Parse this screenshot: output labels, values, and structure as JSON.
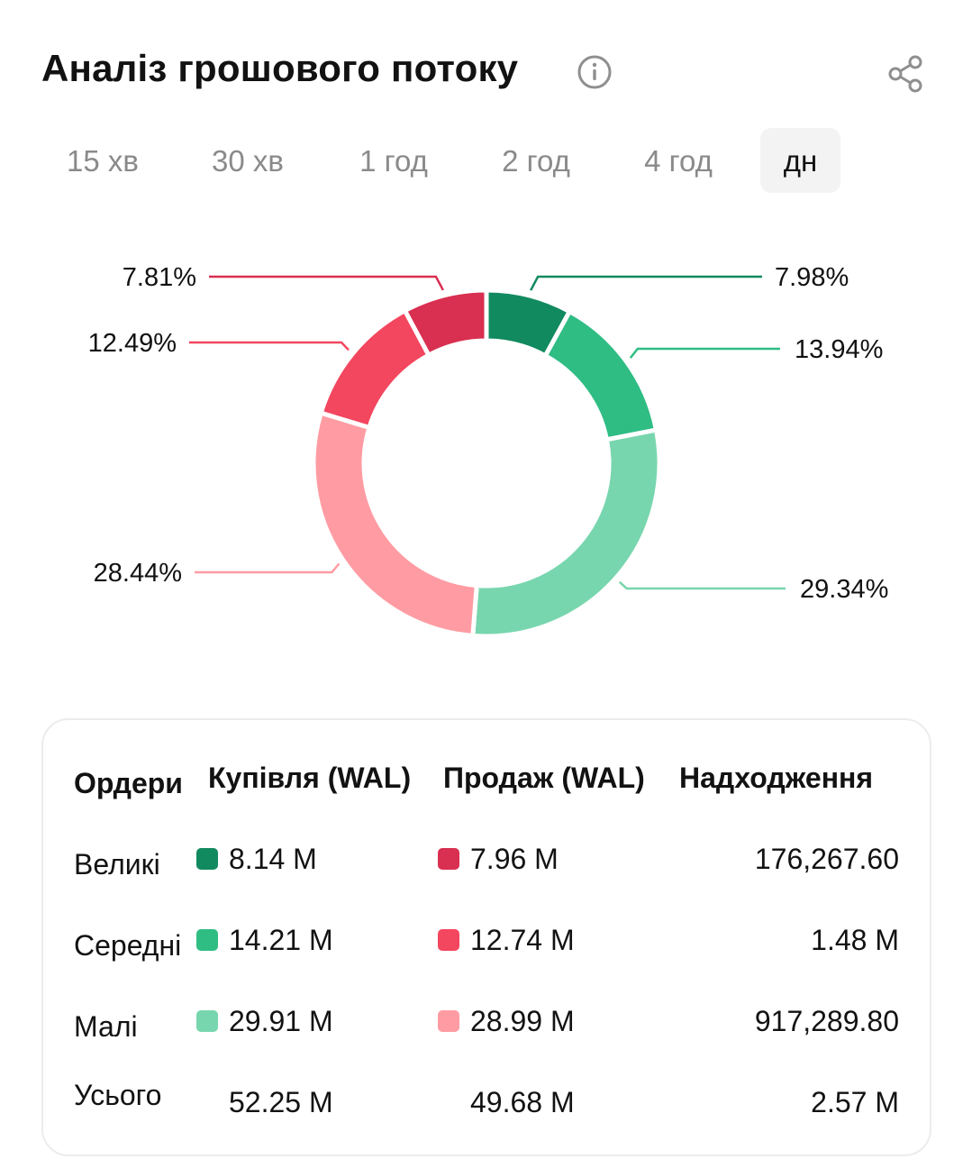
{
  "header": {
    "title": "Аналіз грошового потоку",
    "info_icon": "info-circle-icon",
    "share_icon": "share-icon"
  },
  "tabs": [
    {
      "label": "15 хв",
      "active": false
    },
    {
      "label": "30 хв",
      "active": false
    },
    {
      "label": "1 год",
      "active": false
    },
    {
      "label": "2 год",
      "active": false
    },
    {
      "label": "4 год",
      "active": false
    },
    {
      "label": "дн",
      "active": true
    }
  ],
  "colors": {
    "buy_large": "#128a5f",
    "buy_medium": "#2fbd84",
    "buy_small": "#78d6ae",
    "sell_large": "#d92f50",
    "sell_medium": "#f3465f",
    "sell_small": "#ff9ca3"
  },
  "chart_data": {
    "type": "pie",
    "style": "donut",
    "slices": [
      {
        "label": "7.98%",
        "value": 7.98,
        "color": "#128a5f"
      },
      {
        "label": "13.94%",
        "value": 13.94,
        "color": "#2fbd84"
      },
      {
        "label": "29.34%",
        "value": 29.34,
        "color": "#78d6ae"
      },
      {
        "label": "28.44%",
        "value": 28.44,
        "color": "#ff9ca3"
      },
      {
        "label": "12.49%",
        "value": 12.49,
        "color": "#f3465f"
      },
      {
        "label": "7.81%",
        "value": 7.81,
        "color": "#d92f50"
      }
    ]
  },
  "table": {
    "headers": [
      "Ордери",
      "Купівля (WAL)",
      "Продаж (WAL)",
      "Надходження"
    ],
    "rows": [
      {
        "order": "Великі",
        "buy": "8.14 M",
        "sell": "7.96 M",
        "inflow": "176,267.60",
        "buy_color": "#128a5f",
        "sell_color": "#d92f50"
      },
      {
        "order": "Середні",
        "buy": "14.21 M",
        "sell": "12.74 M",
        "inflow": "1.48 M",
        "buy_color": "#2fbd84",
        "sell_color": "#f3465f"
      },
      {
        "order": "Малі",
        "buy": "29.91 M",
        "sell": "28.99 M",
        "inflow": "917,289.80",
        "buy_color": "#78d6ae",
        "sell_color": "#ff9ca3"
      },
      {
        "order": "Усього",
        "buy": "52.25 M",
        "sell": "49.68 M",
        "inflow": "2.57 M"
      }
    ]
  }
}
